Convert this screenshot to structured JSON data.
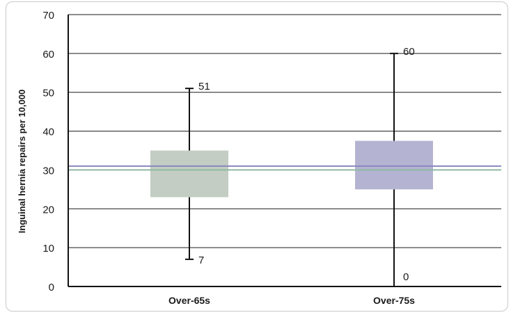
{
  "chart_data": {
    "type": "boxplot",
    "title": "",
    "ylabel": "Inguinal hernia repairs per 10,000",
    "xlabel": "",
    "ylim": [
      0,
      70
    ],
    "yticks": [
      0,
      10,
      20,
      30,
      40,
      50,
      60,
      70
    ],
    "grid": true,
    "categories": [
      "Over-65s",
      "Over-75s"
    ],
    "boxes": [
      {
        "category": "Over-65s",
        "min": 7,
        "q1": 23,
        "q3": 35,
        "max": 51,
        "color": "#c3cdc3"
      },
      {
        "category": "Over-75s",
        "min": 0,
        "q1": 25,
        "q3": 37.5,
        "max": 60,
        "color": "#b4b4d2"
      }
    ],
    "reference_lines": [
      {
        "value": 31,
        "color": "#8a87bd"
      },
      {
        "value": 30,
        "color": "#8fb8a2"
      }
    ],
    "labels": {
      "min_labels": [
        "7",
        "0"
      ],
      "max_labels": [
        "51",
        "60"
      ]
    }
  }
}
